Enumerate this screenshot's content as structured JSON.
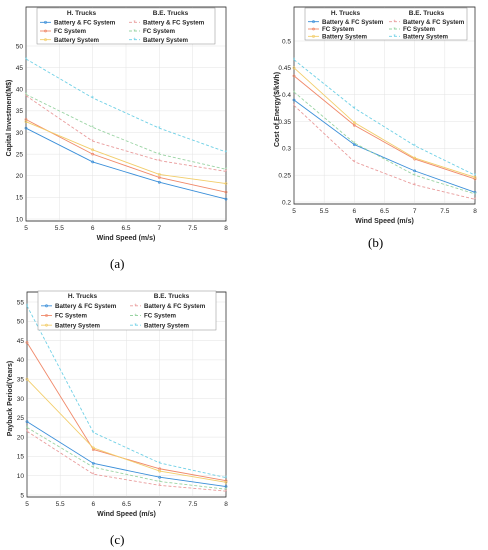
{
  "chart_data": [
    {
      "type": "line",
      "panel_label": "(a)",
      "xlabel": "Wind Speed (m/s)",
      "ylabel": "Capital Investment(M$)",
      "xlim": [
        5,
        8
      ],
      "ylim": [
        10,
        50
      ],
      "xticks": [
        "5",
        "5.5",
        "6",
        "6.5",
        "7",
        "7.5",
        "8"
      ],
      "yticks": [
        "10",
        "15",
        "20",
        "25",
        "30",
        "35",
        "40",
        "45",
        "50"
      ],
      "grid": true,
      "legend": "top",
      "legend_group_titles": [
        "H. Trucks",
        "B.E. Trucks"
      ],
      "x": [
        5,
        6,
        7,
        8
      ],
      "series": [
        {
          "group": "H. Trucks",
          "name": "Battery & FC System",
          "color": "#3b8fd9",
          "dash": "solid",
          "values": [
            31,
            23.2,
            18.5,
            14.6
          ]
        },
        {
          "group": "H. Trucks",
          "name": "FC System",
          "color": "#f0896a",
          "dash": "solid",
          "values": [
            33,
            25,
            19.6,
            16.2
          ]
        },
        {
          "group": "H. Trucks",
          "name": "Battery System",
          "color": "#f2cd6a",
          "dash": "solid",
          "values": [
            32.5,
            26,
            20.3,
            18.2
          ]
        },
        {
          "group": "B.E. Trucks",
          "name": "Battery & FC System",
          "color": "#e99c9c",
          "dash": "dashed",
          "values": [
            38.5,
            28,
            23.5,
            21
          ]
        },
        {
          "group": "B.E. Trucks",
          "name": "FC System",
          "color": "#9ad4a4",
          "dash": "dashed",
          "values": [
            38.8,
            31.2,
            25,
            21.5
          ]
        },
        {
          "group": "B.E. Trucks",
          "name": "Battery System",
          "color": "#6fd0e6",
          "dash": "dashed",
          "values": [
            47,
            38,
            31,
            25.5
          ]
        }
      ]
    },
    {
      "type": "line",
      "panel_label": "(b)",
      "xlabel": "Wind Speed (m/s)",
      "ylabel": "Cost of Energy($/kWh)",
      "xlim": [
        5,
        8
      ],
      "ylim": [
        0.2,
        0.5
      ],
      "xticks": [
        "5",
        "5.5",
        "6",
        "6.5",
        "7",
        "7.5",
        "8"
      ],
      "yticks": [
        "0.2",
        "0.25",
        "0.3",
        "0.35",
        "0.4",
        "0.45",
        "0.5"
      ],
      "grid": true,
      "legend": "top",
      "legend_group_titles": [
        "H. Trucks",
        "B.E. Trucks"
      ],
      "x": [
        5,
        6,
        7,
        8
      ],
      "series": [
        {
          "group": "H. Trucks",
          "name": "Battery & FC System",
          "color": "#3b8fd9",
          "dash": "solid",
          "values": [
            0.39,
            0.307,
            0.258,
            0.218
          ]
        },
        {
          "group": "H. Trucks",
          "name": "FC System",
          "color": "#f0896a",
          "dash": "solid",
          "values": [
            0.435,
            0.343,
            0.28,
            0.243
          ]
        },
        {
          "group": "H. Trucks",
          "name": "Battery System",
          "color": "#f2cd6a",
          "dash": "solid",
          "values": [
            0.45,
            0.348,
            0.282,
            0.246
          ]
        },
        {
          "group": "B.E. Trucks",
          "name": "Battery & FC System",
          "color": "#e99c9c",
          "dash": "dashed",
          "values": [
            0.38,
            0.275,
            0.232,
            0.205
          ]
        },
        {
          "group": "B.E. Trucks",
          "name": "FC System",
          "color": "#9ad4a4",
          "dash": "dashed",
          "values": [
            0.405,
            0.31,
            0.25,
            0.215
          ]
        },
        {
          "group": "B.E. Trucks",
          "name": "Battery System",
          "color": "#6fd0e6",
          "dash": "dashed",
          "values": [
            0.465,
            0.375,
            0.305,
            0.25
          ]
        }
      ]
    },
    {
      "type": "line",
      "panel_label": "(c)",
      "xlabel": "Wind Speed (m/s)",
      "ylabel": "Payback Period(Years)",
      "xlim": [
        5,
        8
      ],
      "ylim": [
        5,
        60
      ],
      "xticks": [
        "5",
        "5.5",
        "6",
        "6.5",
        "7",
        "7.5",
        "8"
      ],
      "yticks": [
        "5",
        "10",
        "15",
        "20",
        "25",
        "30",
        "35",
        "40",
        "45",
        "50",
        "55"
      ],
      "grid": true,
      "legend": "top",
      "legend_group_titles": [
        "H. Trucks",
        "B.E. Trucks"
      ],
      "x": [
        5,
        6,
        7,
        8
      ],
      "series": [
        {
          "group": "H. Trucks",
          "name": "Battery & FC System",
          "color": "#3b8fd9",
          "dash": "solid",
          "values": [
            24,
            13.2,
            9.6,
            7.2
          ]
        },
        {
          "group": "H. Trucks",
          "name": "FC System",
          "color": "#f0896a",
          "dash": "solid",
          "values": [
            44.5,
            16.8,
            11.8,
            8.7
          ]
        },
        {
          "group": "H. Trucks",
          "name": "Battery System",
          "color": "#f2cd6a",
          "dash": "solid",
          "values": [
            35,
            17.2,
            11.2,
            8.3
          ]
        },
        {
          "group": "B.E. Trucks",
          "name": "Battery & FC System",
          "color": "#e99c9c",
          "dash": "dashed",
          "values": [
            21.5,
            10.4,
            7.5,
            6
          ]
        },
        {
          "group": "B.E. Trucks",
          "name": "FC System",
          "color": "#9ad4a4",
          "dash": "dashed",
          "values": [
            22.5,
            12.2,
            8.5,
            6.5
          ]
        },
        {
          "group": "B.E. Trucks",
          "name": "Battery System",
          "color": "#6fd0e6",
          "dash": "dashed",
          "values": [
            54,
            21.2,
            13.3,
            9.5
          ]
        }
      ]
    }
  ]
}
